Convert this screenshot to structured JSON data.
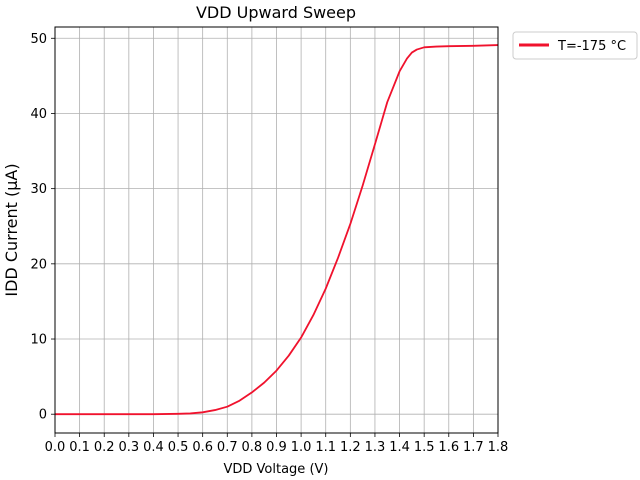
{
  "chart_data": {
    "type": "line",
    "title": "VDD Upward Sweep",
    "xlabel": "VDD Voltage (V)",
    "ylabel": "IDD Current (μA)",
    "xlim": [
      0.0,
      1.8
    ],
    "ylim": [
      -2.5,
      51.5
    ],
    "xticks": [
      0.0,
      0.1,
      0.2,
      0.3,
      0.4,
      0.5,
      0.6,
      0.7,
      0.8,
      0.9,
      1.0,
      1.1,
      1.2,
      1.3,
      1.4,
      1.5,
      1.6,
      1.7,
      1.8
    ],
    "xtick_labels": [
      "0.0",
      "0.1",
      "0.2",
      "0.3",
      "0.4",
      "0.5",
      "0.6",
      "0.7",
      "0.8",
      "0.9",
      "1.0",
      "1.1",
      "1.2",
      "1.3",
      "1.4",
      "1.5",
      "1.6",
      "1.7",
      "1.8"
    ],
    "yticks": [
      0,
      10,
      20,
      30,
      40,
      50
    ],
    "ytick_labels": [
      "0",
      "10",
      "20",
      "30",
      "40",
      "50"
    ],
    "grid": true,
    "legend_position": "outside-top-right",
    "series": [
      {
        "name": "T=-175 °C",
        "color": "#f0122d",
        "x": [
          0.0,
          0.1,
          0.2,
          0.3,
          0.4,
          0.5,
          0.55,
          0.6,
          0.65,
          0.7,
          0.75,
          0.8,
          0.85,
          0.9,
          0.95,
          1.0,
          1.05,
          1.1,
          1.15,
          1.2,
          1.25,
          1.3,
          1.35,
          1.4,
          1.43,
          1.45,
          1.47,
          1.5,
          1.55,
          1.6,
          1.7,
          1.8
        ],
        "y": [
          0.0,
          0.0,
          0.0,
          0.0,
          0.0,
          0.05,
          0.1,
          0.25,
          0.55,
          1.0,
          1.8,
          2.9,
          4.2,
          5.8,
          7.8,
          10.2,
          13.2,
          16.7,
          20.8,
          25.3,
          30.4,
          35.9,
          41.5,
          45.6,
          47.3,
          48.1,
          48.5,
          48.8,
          48.9,
          48.95,
          49.0,
          49.1
        ]
      }
    ]
  }
}
